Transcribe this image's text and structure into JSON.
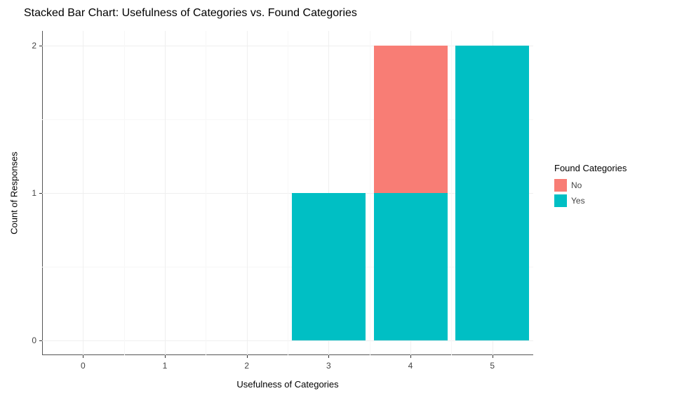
{
  "chart": {
    "type": "bar-stacked",
    "title": "Stacked Bar Chart: Usefulness of Categories vs. Found Categories",
    "title_fontsize": 16,
    "x_label": "Usefulness of Categories",
    "y_label": "Count of Responses",
    "axis_label_fontsize": 13,
    "tick_fontsize": 12,
    "background_color": "#ffffff",
    "major_grid_color": "#efefef",
    "minor_grid_color": "#f7f7f7",
    "axis_tick_color": "#333333",
    "x_ticks": [
      0,
      1,
      2,
      3,
      4,
      5
    ],
    "y_ticks": [
      0,
      1,
      2
    ],
    "y_minor_between": [
      0.5,
      1.5
    ],
    "x_minor_between": [
      0.5,
      1.5,
      2.5,
      3.5,
      4.5
    ],
    "xlim_min": -0.5,
    "xlim_max": 5.5,
    "ylim_min": -0.1,
    "ylim_max": 2.1,
    "bar_step": 1,
    "bar_width": 0.9,
    "series_order": [
      "Yes",
      "No"
    ],
    "series_colors": {
      "No": "#f87d75",
      "Yes": "#00bfc4"
    },
    "stacks": [
      {
        "x": 3,
        "Yes": 1,
        "No": 0
      },
      {
        "x": 4,
        "Yes": 1,
        "No": 1
      },
      {
        "x": 5,
        "Yes": 2,
        "No": 0
      }
    ],
    "legend": {
      "title": "Found Categories",
      "items": [
        {
          "label": "No",
          "color": "#f87d75"
        },
        {
          "label": "Yes",
          "color": "#00bfc4"
        }
      ]
    }
  }
}
